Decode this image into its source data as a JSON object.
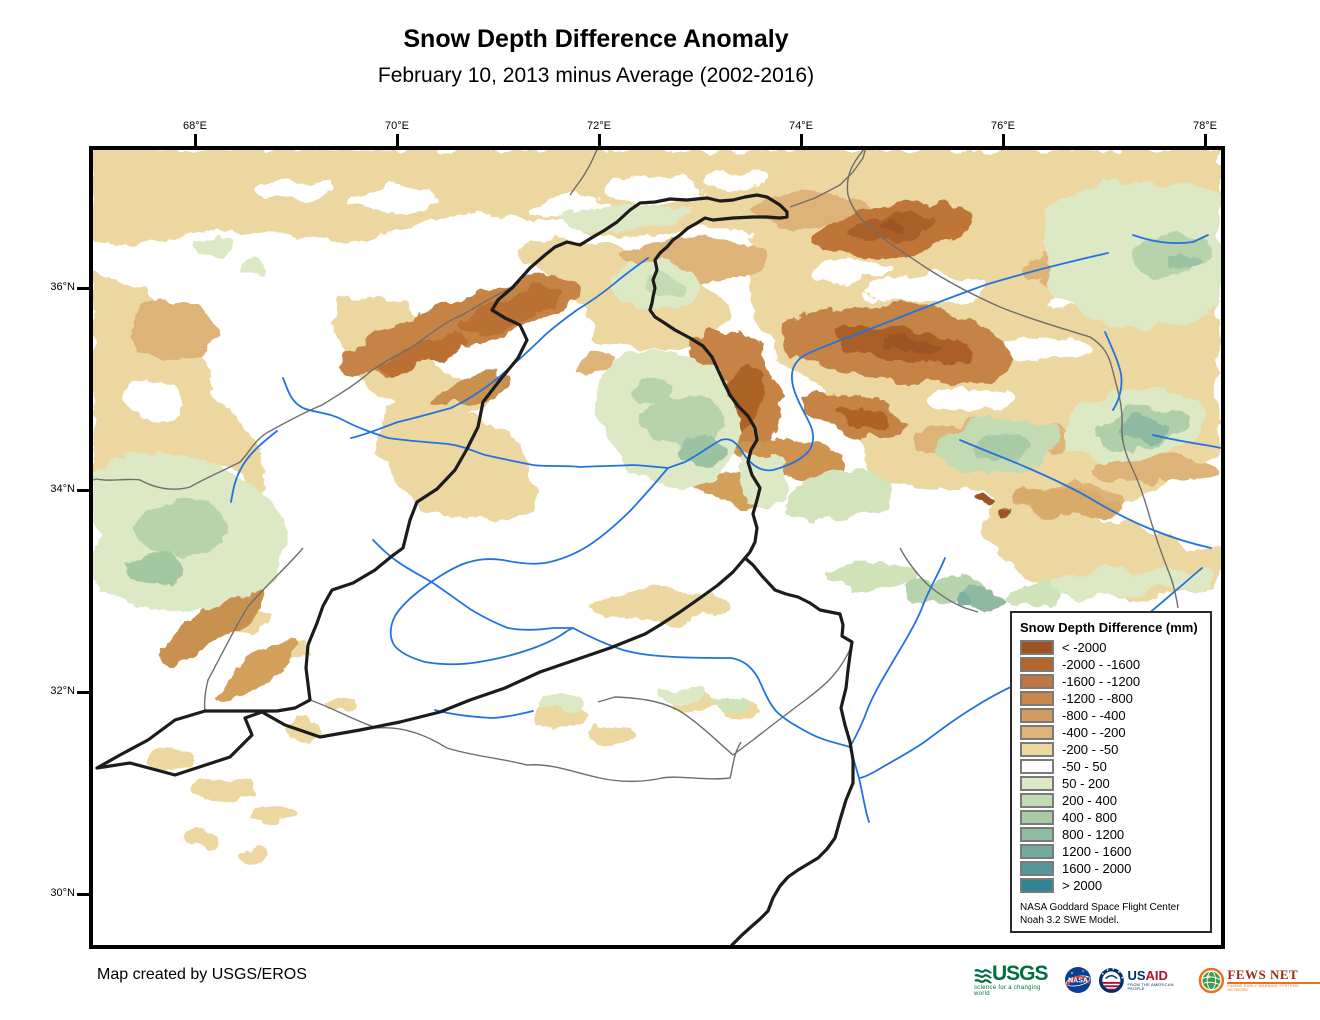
{
  "title": "Snow Depth Difference Anomaly",
  "subtitle": "February 10, 2013 minus Average (2002-2016)",
  "map": {
    "x_ticks": [
      "68°E",
      "70°E",
      "72°E",
      "74°E",
      "76°E",
      "78°E"
    ],
    "y_ticks": [
      "36°N",
      "34°N",
      "32°N",
      "30°N"
    ]
  },
  "legend": {
    "title": "Snow Depth Difference (mm)",
    "items": [
      {
        "label": "< -2000",
        "color": "#9D5221"
      },
      {
        "label": "-2000 - -1600",
        "color": "#B2662C"
      },
      {
        "label": "-1600 - -1200",
        "color": "#BF7640"
      },
      {
        "label": "-1200 - -800",
        "color": "#C8854C"
      },
      {
        "label": "-800 - -400",
        "color": "#D29A5F"
      },
      {
        "label": "-400 - -200",
        "color": "#DDB377"
      },
      {
        "label": "-200 - -50",
        "color": "#ECD7A0"
      },
      {
        "label": "-50 - 50",
        "color": "#FFFFFF"
      },
      {
        "label": "50 - 200",
        "color": "#DCE9C4"
      },
      {
        "label": "200 - 400",
        "color": "#C2DBB3"
      },
      {
        "label": "400 - 800",
        "color": "#A8CBA5"
      },
      {
        "label": "800 - 1200",
        "color": "#8FBCA0"
      },
      {
        "label": "1200 - 1600",
        "color": "#73AB9D"
      },
      {
        "label": "1600 - 2000",
        "color": "#569899"
      },
      {
        "label": "> 2000",
        "color": "#2F8496"
      }
    ],
    "footer_line1": "NASA Goddard Space Flight Center",
    "footer_line2": "Noah 3.2 SWE Model."
  },
  "credit": "Map created by USGS/EROS",
  "logos": {
    "usgs": {
      "name": "USGS",
      "tagline": "science for a changing world",
      "green": "#006F41"
    },
    "nasa": {
      "name": "NASA",
      "blue": "#0B3D91",
      "red": "#FC3D21"
    },
    "usaid": {
      "us": "US",
      "aid": "AID",
      "tagline": "FROM THE AMERICAN PEOPLE",
      "navy": "#002F6C",
      "red": "#BA0C2F"
    },
    "fews": {
      "name": "FEWS NET",
      "tagline": "FAMINE EARLY WARNING SYSTEMS NETWORK",
      "orange": "#E8731A",
      "maroon": "#9C2A13"
    }
  },
  "map_colors": {
    "river": "#2273E0",
    "border_country": "#1C1C1C",
    "border_admin": "#6E6E6E"
  }
}
